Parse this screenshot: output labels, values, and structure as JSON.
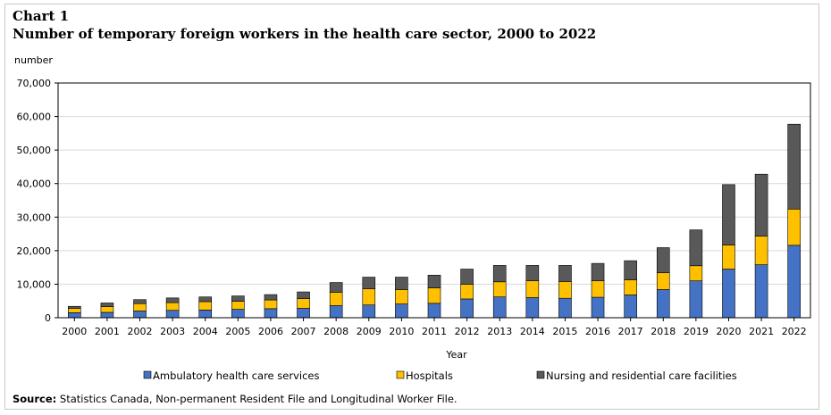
{
  "header": {
    "chart_label": "Chart 1",
    "title": "Number of temporary foreign workers in the health care sector, 2000 to 2022"
  },
  "footer": {
    "source_label": "Source:",
    "source_text": "Statistics Canada, Non-permanent Resident File and Longitudinal Worker File."
  },
  "chart_data": {
    "type": "bar",
    "stacked": true,
    "title": "Number of temporary foreign workers in the health care sector, 2000 to 2022",
    "xlabel": "Year",
    "ylabel": "number",
    "ylim": [
      0,
      70000
    ],
    "yticks": [
      0,
      10000,
      20000,
      30000,
      40000,
      50000,
      60000,
      70000
    ],
    "ytick_labels": [
      "0",
      "10,000",
      "20,000",
      "30,000",
      "40,000",
      "50,000",
      "60,000",
      "70,000"
    ],
    "grid": true,
    "legend_position": "bottom",
    "categories": [
      "2000",
      "2001",
      "2002",
      "2003",
      "2004",
      "2005",
      "2006",
      "2007",
      "2008",
      "2009",
      "2010",
      "2011",
      "2012",
      "2013",
      "2014",
      "2015",
      "2016",
      "2017",
      "2018",
      "2019",
      "2020",
      "2021",
      "2022"
    ],
    "series": [
      {
        "name": "Ambulatory health care services",
        "color": "#4472c4",
        "values": [
          1500,
          1600,
          2000,
          2200,
          2300,
          2500,
          2700,
          2800,
          3600,
          3800,
          4100,
          4300,
          5600,
          6200,
          6000,
          5800,
          6100,
          6800,
          8400,
          11000,
          14500,
          15800,
          21600
        ]
      },
      {
        "name": "Hospitals",
        "color": "#ffc000",
        "values": [
          1300,
          1700,
          2200,
          2300,
          2500,
          2400,
          2600,
          2900,
          4000,
          4800,
          4300,
          4600,
          4400,
          4500,
          5000,
          5000,
          4900,
          4500,
          5000,
          4500,
          7200,
          8500,
          10800
        ]
      },
      {
        "name": "Nursing and residential care facilities",
        "color": "#595959",
        "values": [
          600,
          1100,
          1200,
          1400,
          1400,
          1600,
          1600,
          2000,
          2900,
          3500,
          3700,
          3800,
          4500,
          4900,
          4600,
          4800,
          5200,
          5700,
          7500,
          10700,
          18000,
          18500,
          25300
        ]
      }
    ]
  }
}
